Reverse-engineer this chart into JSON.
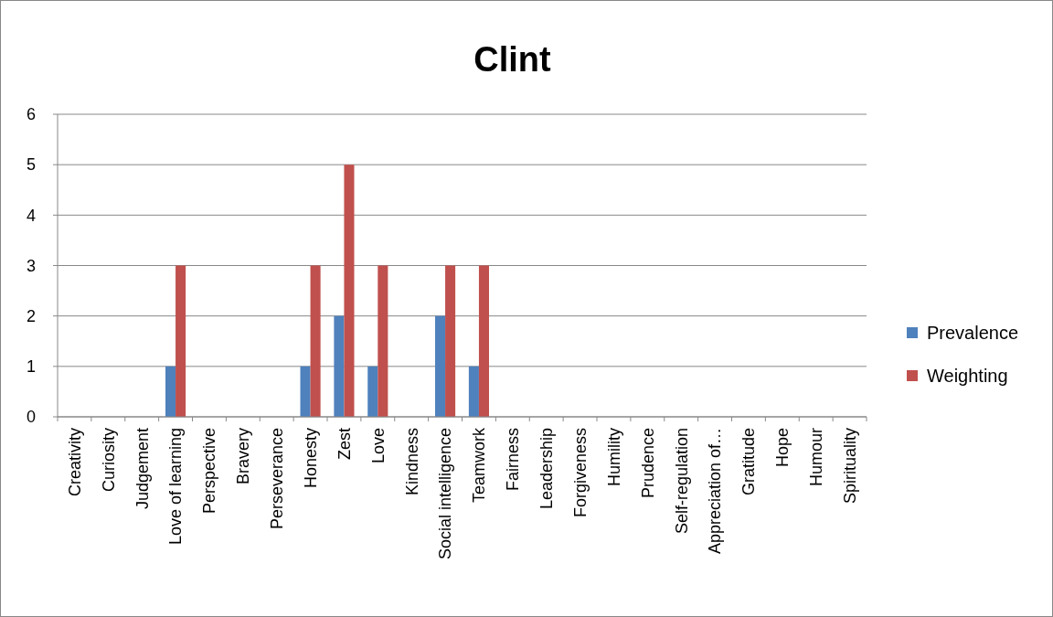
{
  "chart_data": {
    "type": "bar",
    "title": "Clint",
    "categories": [
      "Creativity",
      "Curiosity",
      "Judgement",
      "Love of learning",
      "Perspective",
      "Bravery",
      "Perseverance",
      "Honesty",
      "Zest",
      "Love",
      "Kindness",
      "Social intelligence",
      "Teamwork",
      "Fairness",
      "Leadership",
      "Forgiveness",
      "Humility",
      "Prudence",
      "Self-regulation",
      "Appreciation of…",
      "Gratitude",
      "Hope",
      "Humour",
      "Spirituality"
    ],
    "series": [
      {
        "name": "Prevalence",
        "color": "#4f81bd",
        "values": [
          0,
          0,
          0,
          1,
          0,
          0,
          0,
          1,
          2,
          1,
          0,
          2,
          1,
          0,
          0,
          0,
          0,
          0,
          0,
          0,
          0,
          0,
          0,
          0
        ]
      },
      {
        "name": "Weighting",
        "color": "#c0504d",
        "values": [
          0,
          0,
          0,
          3,
          0,
          0,
          0,
          3,
          5,
          3,
          0,
          3,
          3,
          0,
          0,
          0,
          0,
          0,
          0,
          0,
          0,
          0,
          0,
          0
        ]
      }
    ],
    "ylim": [
      0,
      6
    ],
    "yticks": [
      0,
      1,
      2,
      3,
      4,
      5,
      6
    ],
    "grid": "y",
    "legend": "right"
  }
}
